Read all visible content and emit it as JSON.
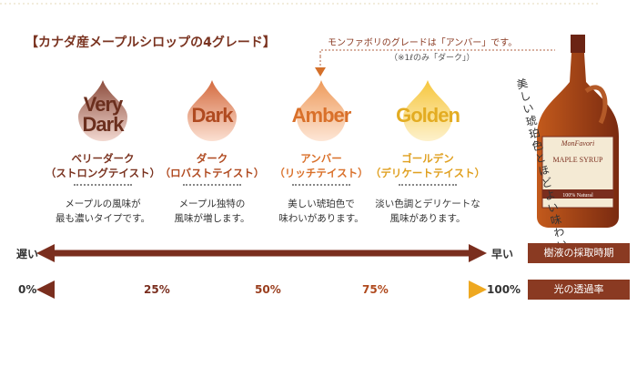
{
  "title": "【カナダ産メープルシロップの4グレード】",
  "note": {
    "main": "モンファボリのグレードは「アンバー」です。",
    "sub": "（※1ℓのみ「ダーク」）"
  },
  "grades": [
    {
      "label_lines": [
        "Very",
        "Dark"
      ],
      "name": "ベリーダーク",
      "taste": "（ストロングテイスト）",
      "description": [
        "メープルの風味が",
        "最も濃いタイプです。"
      ]
    },
    {
      "label_lines": [
        "Dark"
      ],
      "name": "ダーク",
      "taste": "（ロバストテイスト）",
      "description": [
        "メープル独特の",
        "風味が増します。"
      ]
    },
    {
      "label_lines": [
        "Amber"
      ],
      "name": "アンバー",
      "taste": "（リッチテイスト）",
      "description": [
        "美しい琥珀色で",
        "味わいがあります。"
      ]
    },
    {
      "label_lines": [
        "Golden"
      ],
      "name": "ゴールデン",
      "taste": "（デリケートテイスト）",
      "description": [
        "淡い色調とデリケートな",
        "風味があります。"
      ]
    }
  ],
  "bottle": {
    "caption": "美しい琥珀色とほどよい味わい",
    "brand": "MonFavori",
    "product": "MAPLE SYRUP",
    "badge": "100% Natural"
  },
  "scales": [
    {
      "left": "遅い",
      "right": "早い",
      "label": "樹液の採取時期"
    },
    {
      "left": "0%",
      "marks": [
        "25%",
        "50%",
        "75%"
      ],
      "right": "100%",
      "label": "光の透過率"
    }
  ]
}
